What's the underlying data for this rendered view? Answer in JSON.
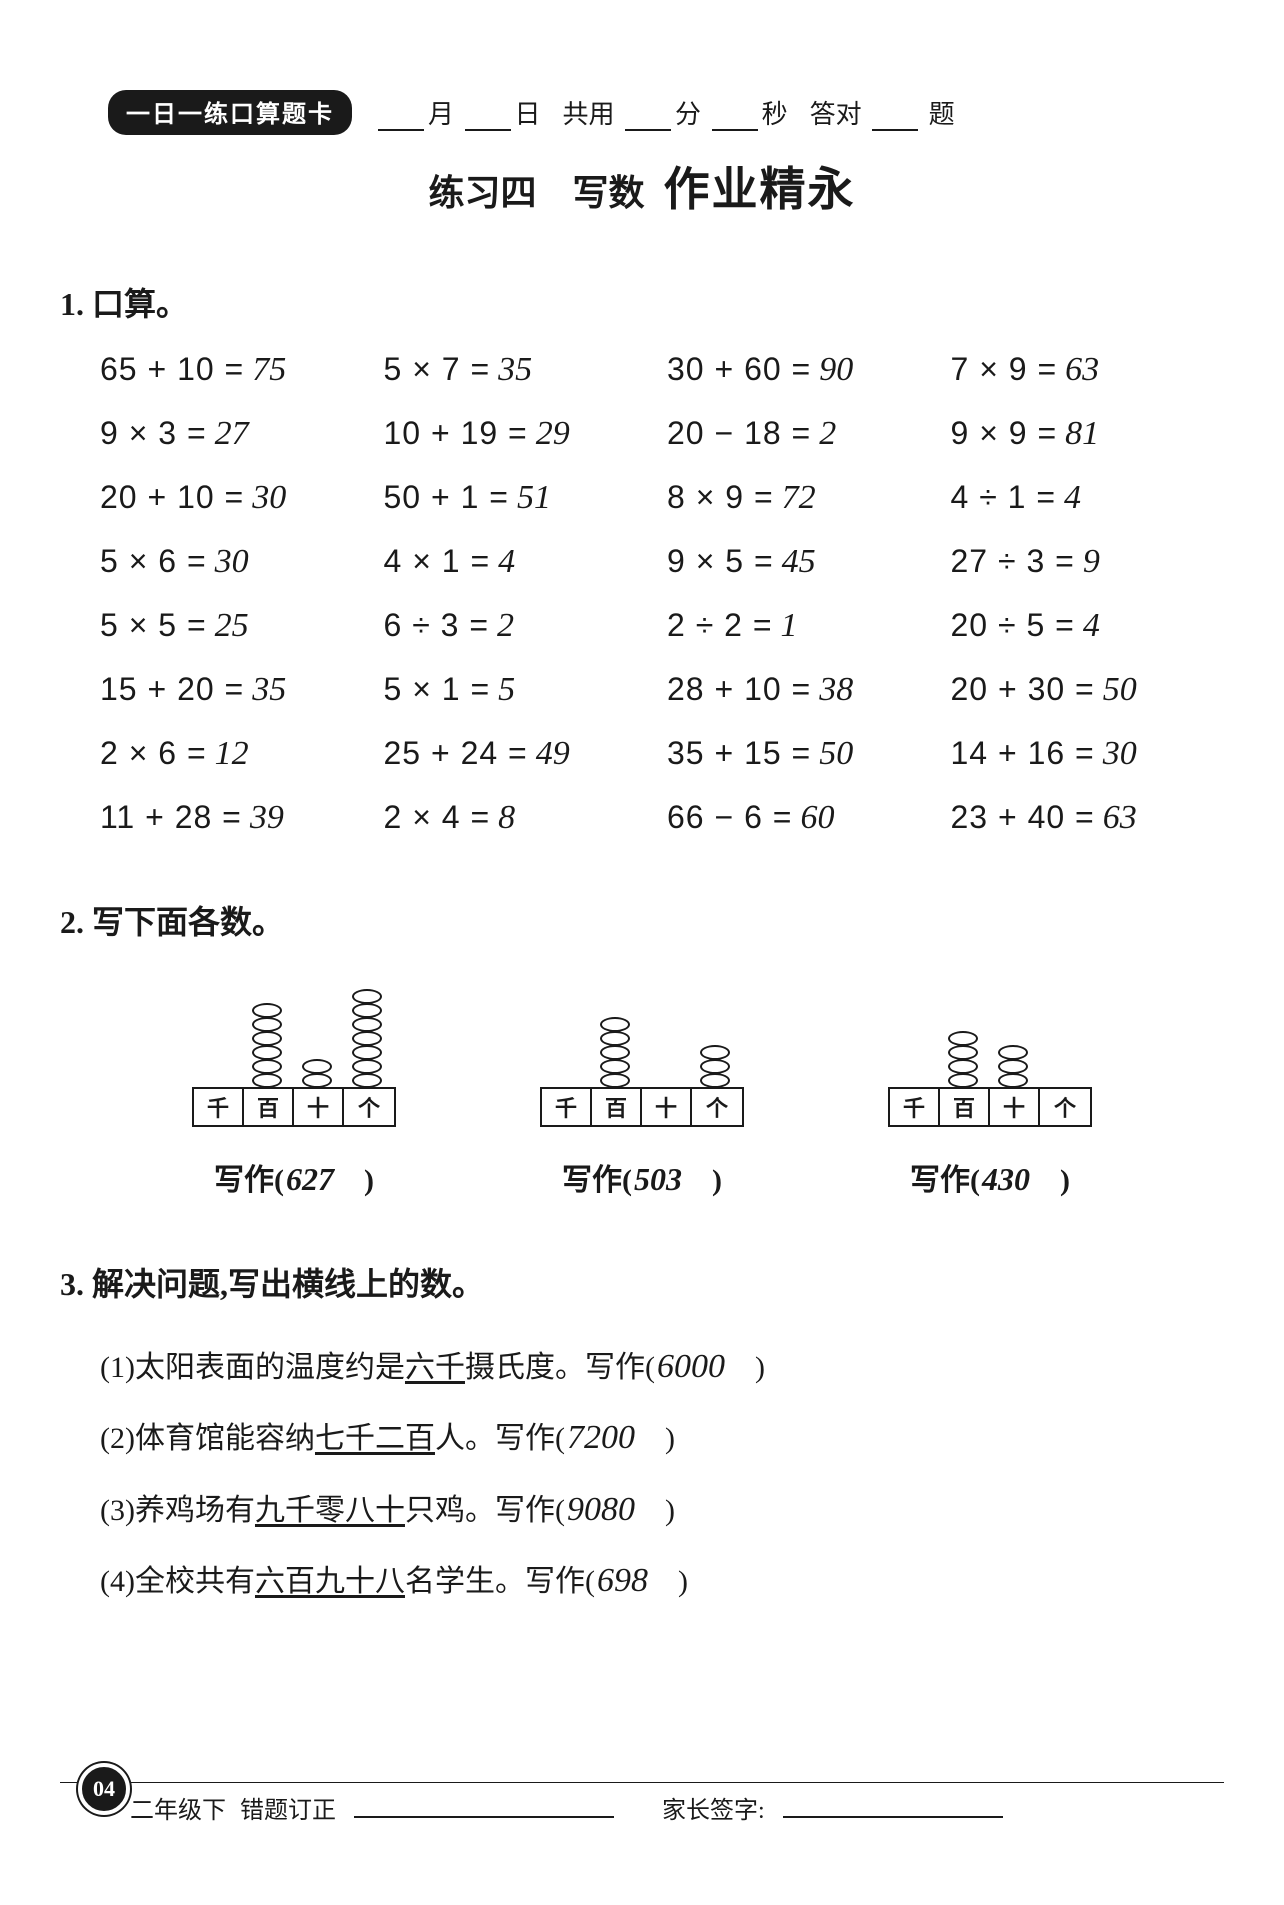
{
  "header": {
    "badge": "一日一练口算题卡",
    "month_label": "月",
    "day_label": "日",
    "time_prefix": "共用",
    "min_label": "分",
    "sec_label": "秒",
    "correct_prefix": "答对",
    "correct_suffix": "题"
  },
  "title": {
    "main": "练习四　写数",
    "watermark": "作业精永"
  },
  "section1": {
    "title": "1. 口算。",
    "problems": [
      {
        "q": "65 + 10 =",
        "a": "75"
      },
      {
        "q": "5 × 7 =",
        "a": "35"
      },
      {
        "q": "30 + 60 =",
        "a": "90"
      },
      {
        "q": "7 × 9 =",
        "a": "63"
      },
      {
        "q": "9 × 3 =",
        "a": "27"
      },
      {
        "q": "10 + 19 =",
        "a": "29"
      },
      {
        "q": "20 − 18 =",
        "a": "2"
      },
      {
        "q": "9 × 9 =",
        "a": "81"
      },
      {
        "q": "20 + 10 =",
        "a": "30"
      },
      {
        "q": "50 + 1 =",
        "a": "51"
      },
      {
        "q": "8 × 9 =",
        "a": "72"
      },
      {
        "q": "4 ÷ 1 =",
        "a": "4"
      },
      {
        "q": "5 × 6 =",
        "a": "30"
      },
      {
        "q": "4 × 1 =",
        "a": "4"
      },
      {
        "q": "9 × 5 =",
        "a": "45"
      },
      {
        "q": "27 ÷ 3 =",
        "a": "9"
      },
      {
        "q": "5 × 5 =",
        "a": "25"
      },
      {
        "q": "6 ÷ 3 =",
        "a": "2"
      },
      {
        "q": "2 ÷ 2 =",
        "a": "1"
      },
      {
        "q": "20 ÷ 5 =",
        "a": "4"
      },
      {
        "q": "15 + 20 =",
        "a": "35"
      },
      {
        "q": "5 × 1 =",
        "a": "5"
      },
      {
        "q": "28 + 10 =",
        "a": "38"
      },
      {
        "q": "20 + 30 =",
        "a": "50"
      },
      {
        "q": "2 × 6 =",
        "a": "12"
      },
      {
        "q": "25 + 24 =",
        "a": "49"
      },
      {
        "q": "35 + 15 =",
        "a": "50"
      },
      {
        "q": "14 + 16 =",
        "a": "30"
      },
      {
        "q": "11 + 28 =",
        "a": "39"
      },
      {
        "q": "2 × 4 =",
        "a": "8"
      },
      {
        "q": "66 − 6 =",
        "a": "60"
      },
      {
        "q": "23 + 40 =",
        "a": "63"
      }
    ]
  },
  "section2": {
    "title": "2. 写下面各数。",
    "place_labels": [
      "千",
      "百",
      "十",
      "个"
    ],
    "write_prefix": "写作(",
    "write_suffix": "　)",
    "items": [
      {
        "beads": [
          0,
          6,
          2,
          7
        ],
        "answer": "627"
      },
      {
        "beads": [
          0,
          5,
          0,
          3
        ],
        "answer": "503"
      },
      {
        "beads": [
          0,
          4,
          3,
          0
        ],
        "answer": "430"
      }
    ]
  },
  "section3": {
    "title": "3. 解决问题,写出横线上的数。",
    "write_prefix": "写作(",
    "write_suffix": "　)",
    "items": [
      {
        "idx": "(1)",
        "pre": "太阳表面的温度约是",
        "u": "六千",
        "post": "摄氏度。",
        "answer": "6000"
      },
      {
        "idx": "(2)",
        "pre": "体育馆能容纳",
        "u": "七千二百",
        "post": "人。",
        "answer": "7200"
      },
      {
        "idx": "(3)",
        "pre": "养鸡场有",
        "u": "九千零八十",
        "post": "只鸡。",
        "answer": "9080"
      },
      {
        "idx": "(4)",
        "pre": "全校共有",
        "u": "六百九十八",
        "post": "名学生。",
        "answer": "698"
      }
    ]
  },
  "footer": {
    "page": "04",
    "grade": "二年级下",
    "corrections": "错题订正",
    "signature": "家长签字:"
  },
  "colors": {
    "ink": "#1a1a1a",
    "paper": "#ffffff"
  }
}
